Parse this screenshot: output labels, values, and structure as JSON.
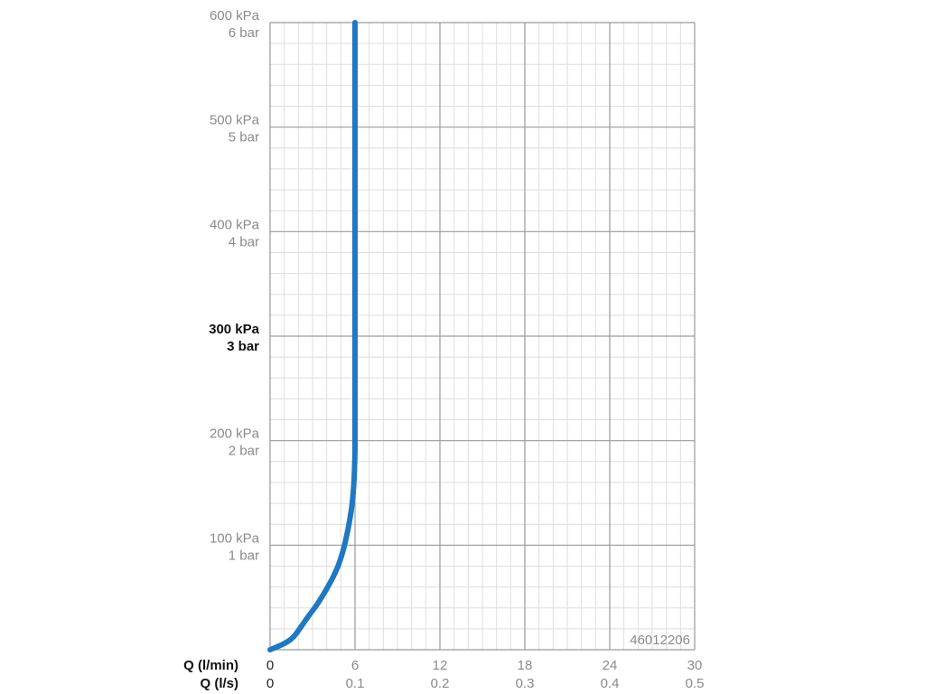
{
  "chart_data": {
    "type": "line",
    "y_axis": {
      "ticks": [
        {
          "kpa": 100,
          "label1": "100 kPa",
          "label2": "1 bar",
          "bold": false
        },
        {
          "kpa": 200,
          "label1": "200 kPa",
          "label2": "2 bar",
          "bold": false
        },
        {
          "kpa": 300,
          "label1": "300 kPa",
          "label2": "3 bar",
          "bold": true
        },
        {
          "kpa": 400,
          "label1": "400 kPa",
          "label2": "4 bar",
          "bold": false
        },
        {
          "kpa": 500,
          "label1": "500 kPa",
          "label2": "5 bar",
          "bold": false
        },
        {
          "kpa": 600,
          "label1": "600 kPa",
          "label2": "6 bar",
          "bold": false
        }
      ],
      "range_kpa": [
        0,
        600
      ]
    },
    "x_axis": {
      "row_label_lmin": "Q (l/min)",
      "row_label_ls": "Q (l/s)",
      "ticks_lmin": [
        "0",
        "6",
        "12",
        "18",
        "24",
        "30"
      ],
      "ticks_ls": [
        "0",
        "0.1",
        "0.2",
        "0.3",
        "0.4",
        "0.5"
      ],
      "range_lmin": [
        0,
        30
      ]
    },
    "grid": true,
    "series": [
      {
        "color": "#1f78c1",
        "points": [
          [
            0,
            0
          ],
          [
            1.0,
            6
          ],
          [
            1.7,
            13
          ],
          [
            2.6,
            30
          ],
          [
            3.4,
            45
          ],
          [
            4.2,
            63
          ],
          [
            4.8,
            80
          ],
          [
            5.2,
            97
          ],
          [
            5.5,
            115
          ],
          [
            5.75,
            135
          ],
          [
            5.9,
            155
          ],
          [
            5.97,
            175
          ],
          [
            6.0,
            195
          ],
          [
            6.0,
            250
          ],
          [
            6.0,
            400
          ],
          [
            6.0,
            600
          ]
        ]
      }
    ],
    "annotation": "46012206"
  }
}
